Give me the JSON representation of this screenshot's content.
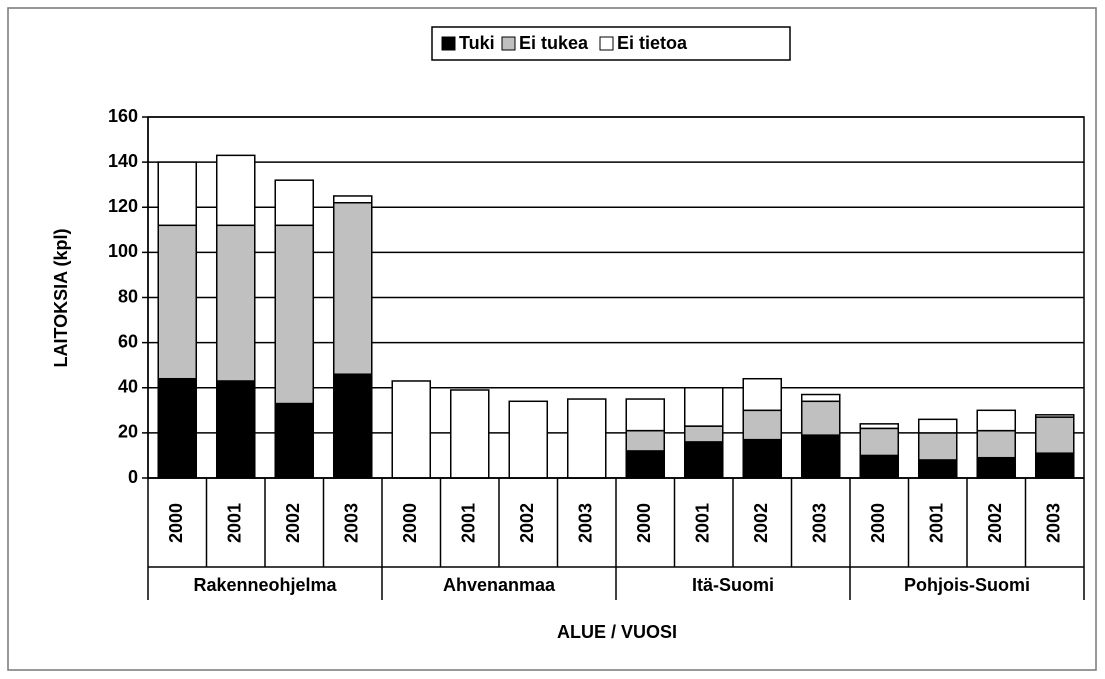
{
  "chart_data": {
    "type": "stacked_bar",
    "x_label": "ALUE / VUOSI",
    "y_label": "LAITOKSIA (kpl)",
    "groups": [
      {
        "name": "Rakenneohjelma",
        "categories": [
          "2000",
          "2001",
          "2002",
          "2003"
        ]
      },
      {
        "name": "Ahvenanmaa",
        "categories": [
          "2000",
          "2001",
          "2002",
          "2003"
        ]
      },
      {
        "name": "Itä-Suomi",
        "categories": [
          "2000",
          "2001",
          "2002",
          "2003"
        ]
      },
      {
        "name": "Pohjois-Suomi",
        "categories": [
          "2000",
          "2001",
          "2002",
          "2003"
        ]
      }
    ],
    "series": [
      {
        "name": "Tuki",
        "color": "#000000",
        "values": [
          44,
          43,
          33,
          46,
          0,
          0,
          0,
          0,
          12,
          16,
          17,
          19,
          10,
          8,
          9,
          11
        ]
      },
      {
        "name": "Ei tukea",
        "color": "#c0c0c0",
        "values": [
          68,
          69,
          79,
          76,
          0,
          0,
          0,
          0,
          9,
          7,
          13,
          15,
          12,
          12,
          12,
          16
        ]
      },
      {
        "name": "Ei tietoa",
        "color": "#ffffff",
        "values": [
          28,
          31,
          20,
          3,
          43,
          39,
          34,
          35,
          14,
          17,
          14,
          3,
          2,
          6,
          9,
          1
        ]
      }
    ],
    "ylim": [
      0,
      160
    ],
    "yticks": [
      0,
      20,
      40,
      60,
      80,
      100,
      120,
      140,
      160
    ],
    "grid": true,
    "legend": "top"
  }
}
